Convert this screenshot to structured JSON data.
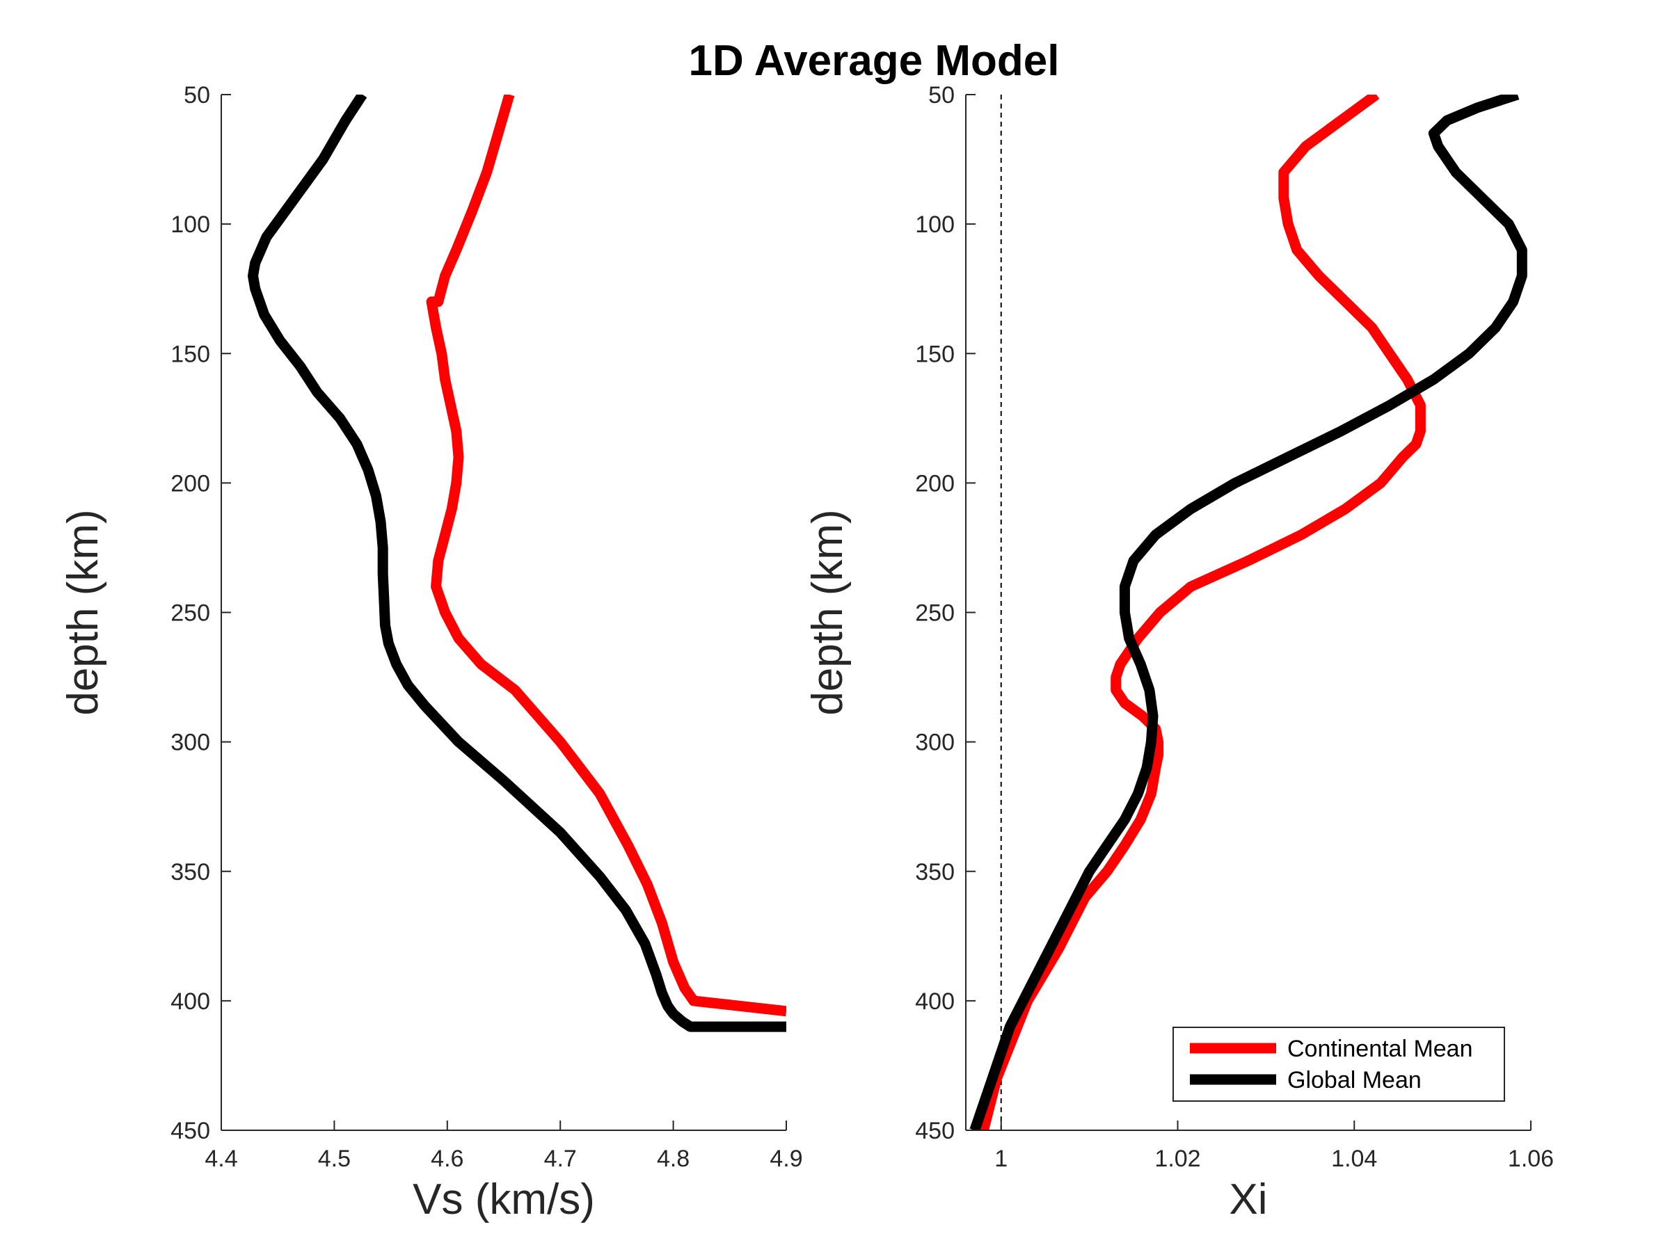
{
  "title": "1D Average Model",
  "colors": {
    "continental": "#ff0000",
    "global": "#000000",
    "axis": "#262626",
    "background": "#ffffff"
  },
  "chart_data": [
    {
      "type": "line",
      "xlabel": "Vs (km/s)",
      "ylabel": "depth (km)",
      "xlim": [
        4.4,
        4.9
      ],
      "ylim": [
        50,
        450
      ],
      "y_reversed": true,
      "xticks": [
        "4.4",
        "4.5",
        "4.6",
        "4.7",
        "4.8",
        "4.9"
      ],
      "yticks": [
        "50",
        "100",
        "150",
        "200",
        "250",
        "300",
        "350",
        "400",
        "450"
      ],
      "series": [
        {
          "name": "Continental Mean",
          "color": "#ff0000",
          "x": [
            4.655,
            4.645,
            4.635,
            4.622,
            4.608,
            4.598,
            4.592,
            4.586,
            4.59,
            4.595,
            4.598,
            4.603,
            4.608,
            4.61,
            4.608,
            4.604,
            4.598,
            4.592,
            4.59,
            4.598,
            4.61,
            4.63,
            4.66,
            4.7,
            4.735,
            4.76,
            4.777,
            4.79,
            4.8,
            4.81,
            4.818,
            4.9
          ],
          "y": [
            50,
            65,
            80,
            95,
            110,
            120,
            130,
            130,
            140,
            150,
            160,
            170,
            180,
            190,
            200,
            210,
            220,
            230,
            240,
            250,
            260,
            270,
            280,
            300,
            320,
            340,
            355,
            370,
            385,
            395,
            400,
            404
          ]
        },
        {
          "name": "Global Mean",
          "color": "#000000",
          "x": [
            4.525,
            4.51,
            4.49,
            4.465,
            4.44,
            4.43,
            4.428,
            4.43,
            4.438,
            4.452,
            4.47,
            4.485,
            4.505,
            4.52,
            4.53,
            4.537,
            4.541,
            4.543,
            4.543,
            4.544,
            4.545,
            4.548,
            4.555,
            4.565,
            4.58,
            4.61,
            4.65,
            4.7,
            4.735,
            4.758,
            4.775,
            4.785,
            4.79,
            4.795,
            4.8,
            4.808,
            4.815,
            4.9
          ],
          "y": [
            50,
            60,
            75,
            90,
            105,
            115,
            120,
            125,
            135,
            145,
            155,
            165,
            175,
            185,
            195,
            205,
            215,
            225,
            235,
            245,
            255,
            262,
            270,
            278,
            286,
            300,
            315,
            335,
            352,
            365,
            378,
            390,
            397,
            402,
            405,
            408,
            410,
            410
          ]
        }
      ]
    },
    {
      "type": "line",
      "xlabel": "Xi",
      "ylabel": "depth (km)",
      "xlim": [
        0.996,
        1.06
      ],
      "ylim": [
        50,
        450
      ],
      "y_reversed": true,
      "xticks": [
        "1",
        "1.02",
        "1.04",
        "1.06"
      ],
      "yticks": [
        "50",
        "100",
        "150",
        "200",
        "250",
        "300",
        "350",
        "400",
        "450"
      ],
      "reference_line": {
        "x": 1.0,
        "style": "dashed"
      },
      "legend_position": "bottom-right",
      "series": [
        {
          "name": "Continental Mean",
          "color": "#ff0000",
          "x": [
            1.0425,
            1.0385,
            1.0345,
            1.032,
            1.032,
            1.0325,
            1.0335,
            1.036,
            1.039,
            1.042,
            1.044,
            1.046,
            1.0475,
            1.0475,
            1.047,
            1.0455,
            1.043,
            1.039,
            1.034,
            1.028,
            1.0215,
            1.018,
            1.0155,
            1.0135,
            1.013,
            1.013,
            1.014,
            1.016,
            1.0175,
            1.0178,
            1.0178,
            1.0175,
            1.017,
            1.0158,
            1.014,
            1.012,
            1.0095,
            1.0065,
            1.003,
            0.9995,
            0.998
          ],
          "y": [
            50,
            60,
            70,
            80,
            90,
            100,
            110,
            120,
            130,
            140,
            150,
            160,
            170,
            180,
            185,
            190,
            200,
            210,
            220,
            230,
            240,
            250,
            260,
            270,
            275,
            280,
            285,
            290,
            295,
            300,
            305,
            310,
            320,
            330,
            340,
            350,
            360,
            380,
            400,
            430,
            450
          ]
        },
        {
          "name": "Global Mean",
          "color": "#000000",
          "x": [
            1.0585,
            1.054,
            1.0505,
            1.049,
            1.0495,
            1.0515,
            1.0545,
            1.0575,
            1.059,
            1.059,
            1.058,
            1.056,
            1.053,
            1.049,
            1.044,
            1.0385,
            1.0325,
            1.0265,
            1.0215,
            1.0175,
            1.015,
            1.014,
            1.014,
            1.0145,
            1.0158,
            1.0168,
            1.0172,
            1.017,
            1.0165,
            1.0155,
            1.014,
            1.012,
            1.01,
            1.007,
            1.004,
            1.001,
            0.999,
            0.997
          ],
          "y": [
            50,
            55,
            60,
            65,
            70,
            80,
            90,
            100,
            110,
            120,
            130,
            140,
            150,
            160,
            170,
            180,
            190,
            200,
            210,
            220,
            230,
            240,
            250,
            260,
            270,
            280,
            290,
            300,
            310,
            320,
            330,
            340,
            350,
            370,
            390,
            410,
            430,
            450
          ]
        }
      ]
    }
  ]
}
